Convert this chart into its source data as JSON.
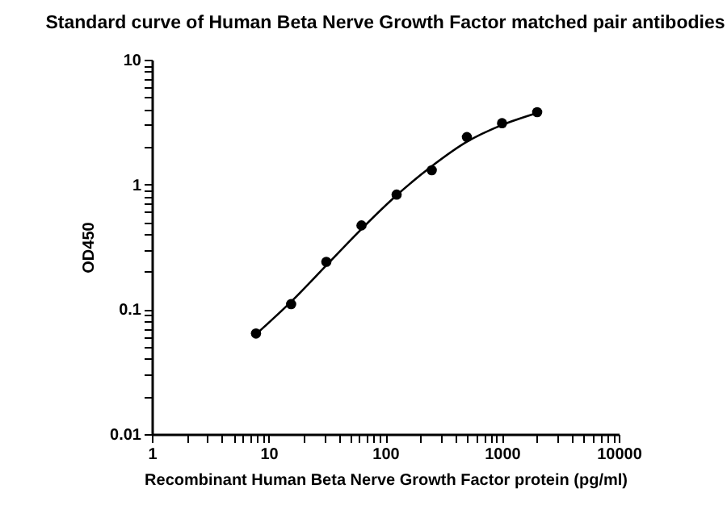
{
  "chart_data": {
    "type": "scatter",
    "title": "Standard curve of Human Beta Nerve Growth Factor matched pair antibodies",
    "xlabel": "Recombinant Human Beta Nerve Growth Factor protein (pg/ml)",
    "ylabel": "OD450",
    "x": [
      7.8,
      15.6,
      31.25,
      62.5,
      125,
      250,
      500,
      1000,
      2000
    ],
    "series": [
      {
        "color": "#000000",
        "marker": "circle",
        "values": [
          0.064,
          0.11,
          0.24,
          0.47,
          0.83,
          1.3,
          2.4,
          3.1,
          3.8
        ]
      },
      {
        "type": "line",
        "marker": "none",
        "color": "#000000",
        "x": [
          7.8,
          15.6,
          31.25,
          62.5,
          125,
          250,
          500,
          1000,
          2000
        ],
        "values": [
          0.063,
          0.115,
          0.225,
          0.44,
          0.82,
          1.4,
          2.2,
          3.0,
          3.75
        ]
      }
    ],
    "log": "xy",
    "line_style": "solid",
    "grid": false,
    "xlim": [
      1,
      10000
    ],
    "xticks": [
      1,
      {
        "value": 2,
        "label": null
      },
      {
        "value": 3,
        "label": null
      },
      {
        "value": 4,
        "label": null
      },
      {
        "value": 5,
        "label": null
      },
      {
        "value": 6,
        "label": null
      },
      {
        "value": 7,
        "label": null
      },
      {
        "value": 8,
        "label": null
      },
      {
        "value": 9,
        "label": null
      },
      10,
      {
        "value": 20,
        "label": null
      },
      {
        "value": 30,
        "label": null
      },
      {
        "value": 40,
        "label": null
      },
      {
        "value": 50,
        "label": null
      },
      {
        "value": 60,
        "label": null
      },
      {
        "value": 70,
        "label": null
      },
      {
        "value": 80,
        "label": null
      },
      {
        "value": 90,
        "label": null
      },
      100,
      {
        "value": 200,
        "label": null
      },
      {
        "value": 300,
        "label": null
      },
      {
        "value": 400,
        "label": null
      },
      {
        "value": 500,
        "label": null
      },
      {
        "value": 600,
        "label": null
      },
      {
        "value": 700,
        "label": null
      },
      {
        "value": 800,
        "label": null
      },
      {
        "value": 900,
        "label": null
      },
      1000,
      {
        "value": 2000,
        "label": null
      },
      {
        "value": 3000,
        "label": null
      },
      {
        "value": 4000,
        "label": null
      },
      {
        "value": 5000,
        "label": null
      },
      {
        "value": 6000,
        "label": null
      },
      {
        "value": 7000,
        "label": null
      },
      {
        "value": 8000,
        "label": null
      },
      {
        "value": 9000,
        "label": null
      },
      10000
    ],
    "ylim": [
      0.01,
      10
    ],
    "yticks": [
      0.01,
      {
        "value": 0.02,
        "label": null
      },
      {
        "value": 0.03,
        "label": null
      },
      {
        "value": 0.04,
        "label": null
      },
      {
        "value": 0.05,
        "label": null
      },
      {
        "value": 0.06,
        "label": null
      },
      {
        "value": 0.07,
        "label": null
      },
      {
        "value": 0.08,
        "label": null
      },
      {
        "value": 0.09,
        "label": null
      },
      0.1,
      {
        "value": 0.2,
        "label": null
      },
      {
        "value": 0.3,
        "label": null
      },
      {
        "value": 0.4,
        "label": null
      },
      {
        "value": 0.5,
        "label": null
      },
      {
        "value": 0.6,
        "label": null
      },
      {
        "value": 0.7,
        "label": null
      },
      {
        "value": 0.8,
        "label": null
      },
      {
        "value": 0.9,
        "label": null
      },
      1,
      {
        "value": 2,
        "label": null
      },
      {
        "value": 3,
        "label": null
      },
      {
        "value": 4,
        "label": null
      },
      {
        "value": 5,
        "label": null
      },
      {
        "value": 6,
        "label": null
      },
      {
        "value": 7,
        "label": null
      },
      {
        "value": 8,
        "label": null
      },
      {
        "value": 9,
        "label": null
      },
      10
    ]
  }
}
